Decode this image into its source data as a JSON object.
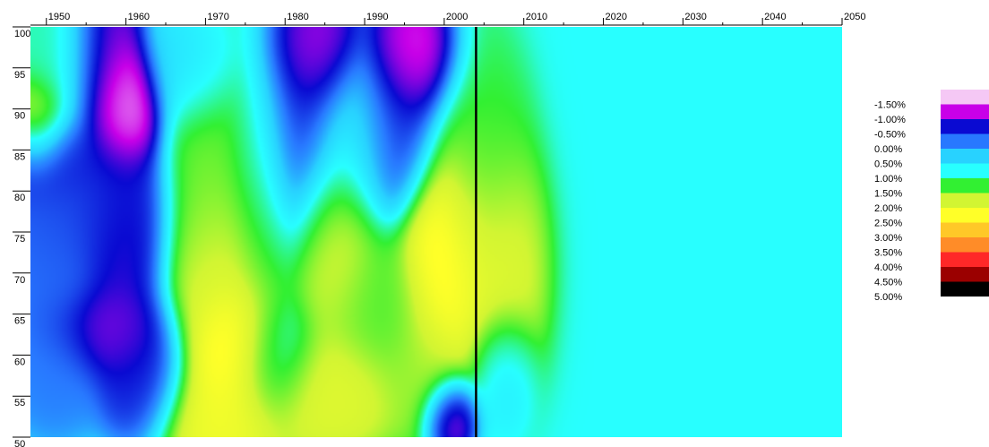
{
  "chart_data": {
    "type": "heatmap",
    "title": "",
    "xlabel": "",
    "ylabel": "",
    "x_ticks": [
      "1950",
      "1960",
      "1970",
      "1980",
      "1990",
      "2000",
      "2010",
      "2020",
      "2030",
      "2040",
      "2050"
    ],
    "y_ticks": [
      "100",
      "95",
      "90",
      "85",
      "80",
      "75",
      "70",
      "65",
      "60",
      "55",
      "50"
    ],
    "xlim": [
      1948,
      2050
    ],
    "ylim": [
      50,
      100
    ],
    "marker_line_x": 2004,
    "legend": [
      {
        "label": "-1.50%",
        "color": "#f5c8f5"
      },
      {
        "label": "-1.00%",
        "color": "#c800e8"
      },
      {
        "label": "-0.50%",
        "color": "#0a0ad2"
      },
      {
        "label": "0.00%",
        "color": "#2878ff"
      },
      {
        "label": "0.50%",
        "color": "#28d2ff"
      },
      {
        "label": "1.00%",
        "color": "#28ffff"
      },
      {
        "label": "1.50%",
        "color": "#32f032"
      },
      {
        "label": "2.00%",
        "color": "#d2f532"
      },
      {
        "label": "2.50%",
        "color": "#ffff28"
      },
      {
        "label": "3.00%",
        "color": "#ffc828"
      },
      {
        "label": "3.50%",
        "color": "#ff8c28"
      },
      {
        "label": "4.00%",
        "color": "#ff2828"
      },
      {
        "label": "4.50%",
        "color": "#9b0000"
      },
      {
        "label": "5.00%",
        "color": "#000000"
      }
    ],
    "legend_position": "right",
    "blobs": [
      {
        "x": 1952,
        "y": 96,
        "sx": 3,
        "sy": 6,
        "v": 1.2
      },
      {
        "x": 1949,
        "y": 88,
        "sx": 2,
        "sy": 3,
        "v": 2.3
      },
      {
        "x": 1951,
        "y": 84,
        "sx": 4,
        "sy": 3,
        "v": -0.6
      },
      {
        "x": 1957,
        "y": 96,
        "sx": 2.5,
        "sy": 6,
        "v": -1.0
      },
      {
        "x": 1960,
        "y": 90,
        "sx": 2.5,
        "sy": 4,
        "v": -1.5
      },
      {
        "x": 1955,
        "y": 78,
        "sx": 5,
        "sy": 5,
        "v": -0.3
      },
      {
        "x": 1960,
        "y": 73,
        "sx": 3,
        "sy": 7,
        "v": -0.7
      },
      {
        "x": 1951,
        "y": 70,
        "sx": 3,
        "sy": 6,
        "v": -0.1
      },
      {
        "x": 1958,
        "y": 63,
        "sx": 4,
        "sy": 3,
        "v": -0.9
      },
      {
        "x": 1962,
        "y": 58,
        "sx": 3,
        "sy": 4,
        "v": -0.5
      },
      {
        "x": 1951,
        "y": 58,
        "sx": 3,
        "sy": 4,
        "v": 0.0
      },
      {
        "x": 1968,
        "y": 95,
        "sx": 3,
        "sy": 4,
        "v": 0.6
      },
      {
        "x": 1970,
        "y": 80,
        "sx": 3,
        "sy": 10,
        "v": 1.7
      },
      {
        "x": 1972,
        "y": 68,
        "sx": 4,
        "sy": 7,
        "v": 2.3
      },
      {
        "x": 1974,
        "y": 61,
        "sx": 3,
        "sy": 4,
        "v": 3.2
      },
      {
        "x": 1972,
        "y": 53,
        "sx": 4,
        "sy": 4,
        "v": 2.4
      },
      {
        "x": 1977,
        "y": 80,
        "sx": 2.5,
        "sy": 10,
        "v": 1.3
      },
      {
        "x": 1982,
        "y": 88,
        "sx": 3,
        "sy": 8,
        "v": -0.5
      },
      {
        "x": 1984,
        "y": 97,
        "sx": 3,
        "sy": 4,
        "v": -1.1
      },
      {
        "x": 1978,
        "y": 60,
        "sx": 3,
        "sy": 4,
        "v": 0.7
      },
      {
        "x": 1985,
        "y": 56,
        "sx": 5,
        "sy": 4,
        "v": 2.2
      },
      {
        "x": 1986,
        "y": 74,
        "sx": 3,
        "sy": 7,
        "v": 2.2
      },
      {
        "x": 1989,
        "y": 87,
        "sx": 3,
        "sy": 6,
        "v": 0.8
      },
      {
        "x": 1992,
        "y": 66,
        "sx": 4,
        "sy": 5,
        "v": 1.6
      },
      {
        "x": 1996,
        "y": 96,
        "sx": 3,
        "sy": 4,
        "v": -1.3
      },
      {
        "x": 1994,
        "y": 88,
        "sx": 3,
        "sy": 6,
        "v": -0.5
      },
      {
        "x": 2000,
        "y": 72,
        "sx": 3,
        "sy": 8,
        "v": 2.8
      },
      {
        "x": 1998,
        "y": 58,
        "sx": 3,
        "sy": 4,
        "v": 1.8
      },
      {
        "x": 2001,
        "y": 53,
        "sx": 1.8,
        "sy": 2.5,
        "v": -1.4
      },
      {
        "x": 2004,
        "y": 84,
        "sx": 3,
        "sy": 8,
        "v": 1.5
      },
      {
        "x": 2006,
        "y": 70,
        "sx": 3,
        "sy": 8,
        "v": 2.2
      },
      {
        "x": 2007,
        "y": 58,
        "sx": 2,
        "sy": 4,
        "v": 0.6
      }
    ],
    "background_value": 1.0
  }
}
